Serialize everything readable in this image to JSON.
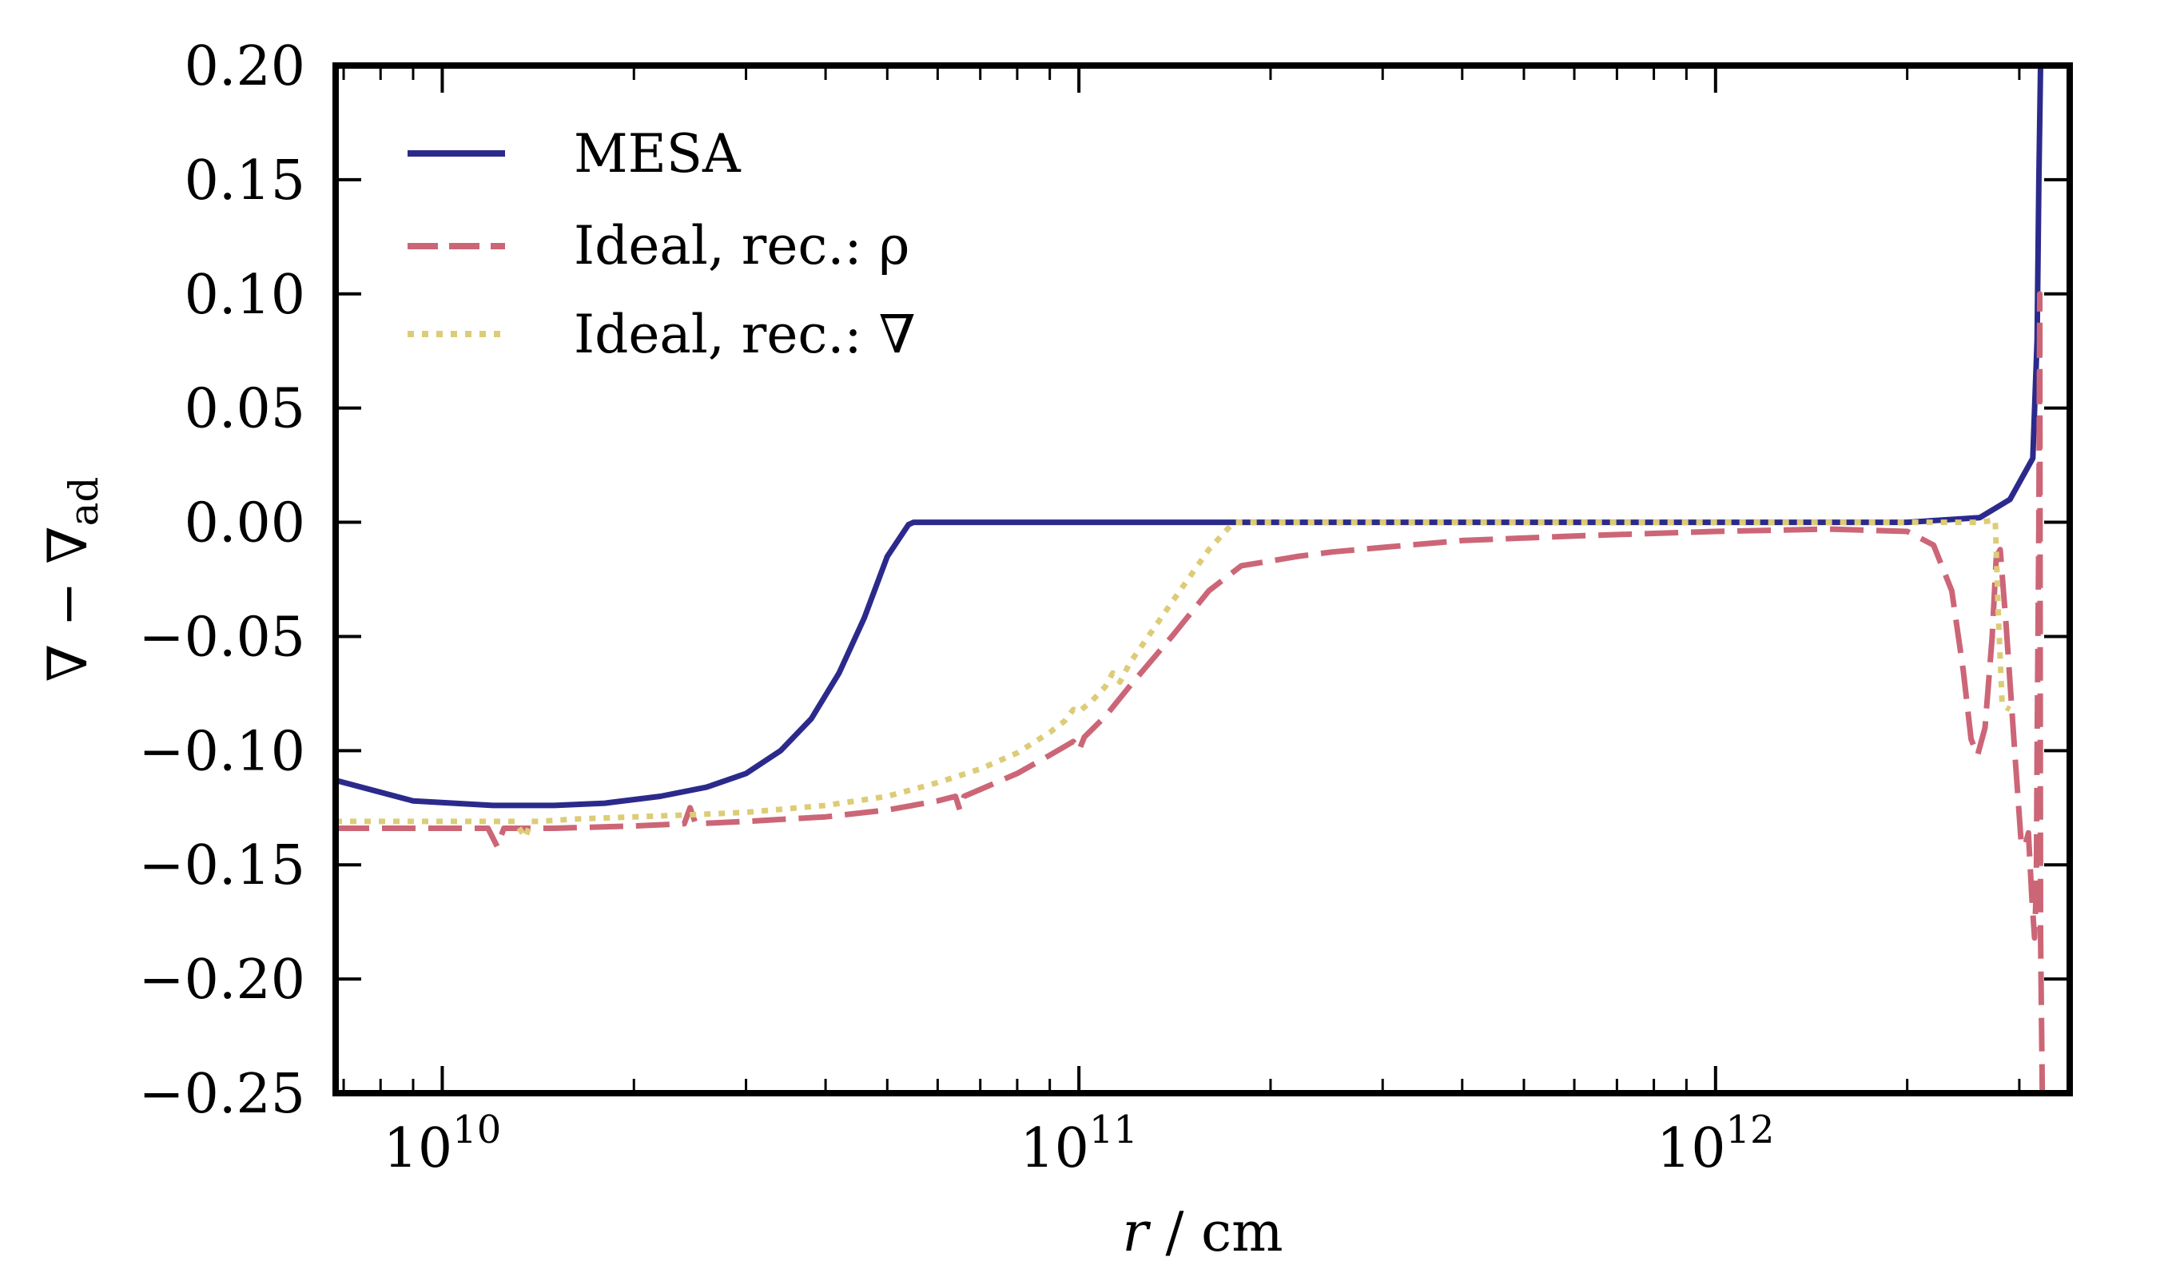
{
  "chart_data": {
    "type": "line",
    "title": "",
    "xlabel": "r / cm",
    "xlabel_var": "r",
    "xlabel_unit": " / cm",
    "ylabel": "∇ − ∇ad",
    "ylabel_main": "∇ − ∇",
    "ylabel_sub": "ad",
    "x_scale": "log",
    "xlim": [
      6800000000.0,
      3600000000000.0
    ],
    "ylim": [
      -0.25,
      0.2
    ],
    "y_ticks": [
      0.2,
      0.15,
      0.1,
      0.05,
      0.0,
      -0.05,
      -0.1,
      -0.15,
      -0.2,
      -0.25
    ],
    "y_tick_labels": [
      "0.20",
      "0.15",
      "0.10",
      "0.05",
      "0.00",
      "−0.05",
      "−0.10",
      "−0.15",
      "−0.20",
      "−0.25"
    ],
    "x_major_ticks": [
      {
        "value": 10000000000.0,
        "base": "10",
        "exp": "10"
      },
      {
        "value": 100000000000.0,
        "base": "10",
        "exp": "11"
      },
      {
        "value": 1000000000000.0,
        "base": "10",
        "exp": "12"
      }
    ],
    "grid": false,
    "legend_position": "top-left",
    "series": [
      {
        "name": "MESA",
        "color": "#2b2a8c",
        "style": "solid",
        "x": [
          6800000000.0,
          9000000000.0,
          12000000000.0,
          15000000000.0,
          18000000000.0,
          22000000000.0,
          26000000000.0,
          30000000000.0,
          34000000000.0,
          38000000000.0,
          42000000000.0,
          46000000000.0,
          50000000000.0,
          54000000000.0,
          55000000000.0,
          100000000000.0,
          1000000000000.0,
          2000000000000.0,
          2600000000000.0,
          2900000000000.0,
          3150000000000.0,
          3200000000000.0,
          3220000000000.0,
          3240000000000.0
        ],
        "y": [
          -0.113,
          -0.122,
          -0.124,
          -0.124,
          -0.123,
          -0.12,
          -0.116,
          -0.11,
          -0.1,
          -0.086,
          -0.066,
          -0.042,
          -0.015,
          -0.001,
          0.0,
          0.0,
          0.0,
          0.0,
          0.002,
          0.01,
          0.028,
          0.08,
          0.15,
          0.2
        ]
      },
      {
        "name": "Ideal, rec.: ρ",
        "color": "#cc6677",
        "style": "dashed",
        "x": [
          6800000000.0,
          10000000000.0,
          11800000000.0,
          12200000000.0,
          12500000000.0,
          15000000000.0,
          20000000000.0,
          24000000000.0,
          24500000000.0,
          25000000000.0,
          30000000000.0,
          40000000000.0,
          50000000000.0,
          60000000000.0,
          64000000000.0,
          65000000000.0,
          66000000000.0,
          70000000000.0,
          80000000000.0,
          90000000000.0,
          98000000000.0,
          100000000000.0,
          102000000000.0,
          110000000000.0,
          120000000000.0,
          140000000000.0,
          160000000000.0,
          180000000000.0,
          200000000000.0,
          220000000000.0,
          250000000000.0,
          300000000000.0,
          400000000000.0,
          600000000000.0,
          1000000000000.0,
          1500000000000.0,
          2000000000000.0,
          2200000000000.0,
          2350000000000.0,
          2450000000000.0,
          2520000000000.0,
          2580000000000.0,
          2650000000000.0,
          2720000000000.0,
          2760000000000.0,
          2800000000000.0,
          2860000000000.0,
          2950000000000.0,
          3020000000000.0,
          3060000000000.0,
          3100000000000.0,
          3140000000000.0,
          3170000000000.0,
          3190000000000.0,
          3200000000000.0,
          3220000000000.0,
          3230000000000.0,
          3240000000000.0,
          3260000000000.0
        ],
        "y": [
          -0.134,
          -0.134,
          -0.134,
          -0.142,
          -0.134,
          -0.134,
          -0.133,
          -0.132,
          -0.125,
          -0.132,
          -0.131,
          -0.129,
          -0.126,
          -0.122,
          -0.12,
          -0.126,
          -0.12,
          -0.117,
          -0.11,
          -0.102,
          -0.096,
          -0.1,
          -0.094,
          -0.085,
          -0.072,
          -0.05,
          -0.03,
          -0.019,
          -0.017,
          -0.015,
          -0.013,
          -0.011,
          -0.008,
          -0.006,
          -0.004,
          -0.003,
          -0.004,
          -0.01,
          -0.03,
          -0.065,
          -0.095,
          -0.102,
          -0.09,
          -0.05,
          -0.015,
          -0.012,
          -0.045,
          -0.1,
          -0.14,
          -0.142,
          -0.136,
          -0.165,
          -0.182,
          -0.16,
          -0.1,
          0.0,
          0.1,
          -0.18,
          -0.25
        ]
      },
      {
        "name": "Ideal, rec.: ∇",
        "color": "#ddcc77",
        "style": "dotted",
        "x": [
          6800000000.0,
          10000000000.0,
          12000000000.0,
          13000000000.0,
          13500000000.0,
          13800000000.0,
          14200000000.0,
          16000000000.0,
          20000000000.0,
          25000000000.0,
          30000000000.0,
          40000000000.0,
          50000000000.0,
          60000000000.0,
          70000000000.0,
          80000000000.0,
          90000000000.0,
          95000000000.0,
          98000000000.0,
          100000000000.0,
          105000000000.0,
          110000000000.0,
          113000000000.0,
          116000000000.0,
          120000000000.0,
          140000000000.0,
          160000000000.0,
          175000000000.0,
          200000000000.0,
          300000000000.0,
          500000000000.0,
          1000000000000.0,
          2000000000000.0,
          2600000000000.0,
          2750000000000.0,
          2780000000000.0,
          2820000000000.0,
          2900000000000.0
        ],
        "y": [
          -0.131,
          -0.131,
          -0.131,
          -0.131,
          -0.138,
          -0.131,
          -0.131,
          -0.13,
          -0.129,
          -0.128,
          -0.127,
          -0.124,
          -0.12,
          -0.114,
          -0.108,
          -0.101,
          -0.092,
          -0.087,
          -0.082,
          -0.083,
          -0.078,
          -0.072,
          -0.066,
          -0.07,
          -0.062,
          -0.035,
          -0.012,
          0.0,
          0.0,
          0.0,
          0.0,
          0.0,
          0.0,
          0.0,
          0.001,
          -0.04,
          -0.08,
          -0.082
        ]
      }
    ]
  }
}
